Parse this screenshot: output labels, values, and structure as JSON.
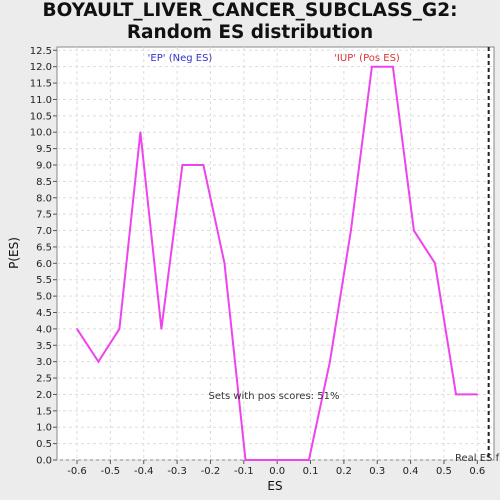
{
  "chart_data": {
    "type": "line",
    "title": "BOYAULT_LIVER_CANCER_SUBCLASS_G2: Random ES distribution",
    "xlabel": "ES",
    "ylabel": "P(ES)",
    "xlim": [
      -0.66,
      0.65
    ],
    "ylim": [
      0,
      12.6
    ],
    "x_ticks": [
      "-0.6",
      "-0.5",
      "-0.4",
      "-0.3",
      "-0.2",
      "-0.1",
      "0.0",
      "0.1",
      "0.2",
      "0.3",
      "0.4",
      "0.5",
      "0.6"
    ],
    "y_ticks": [
      "0.0",
      "0.5",
      "1.0",
      "1.5",
      "2.0",
      "2.5",
      "3.0",
      "3.5",
      "4.0",
      "4.5",
      "5.0",
      "5.5",
      "6.0",
      "6.5",
      "7.0",
      "7.5",
      "8.0",
      "8.5",
      "9.0",
      "9.5",
      "10.0",
      "10.5",
      "11.0",
      "11.5",
      "12.0",
      "12.5"
    ],
    "grid": true,
    "series": [
      {
        "color": "#ee44ee",
        "x": [
          -0.6,
          -0.536,
          -0.473,
          -0.41,
          -0.347,
          -0.284,
          -0.221,
          -0.158,
          -0.095,
          0.032,
          0.095,
          0.158,
          0.221,
          0.284,
          0.347,
          0.41,
          0.473,
          0.536,
          0.6
        ],
        "y": [
          4.0,
          3.0,
          4.0,
          10.0,
          4.0,
          9.0,
          9.0,
          6.0,
          0.0,
          0.0,
          0.0,
          3.0,
          7.0,
          12.0,
          12.0,
          7.0,
          6.0,
          2.0,
          2.0
        ]
      }
    ],
    "annotations": {
      "neg_label": "'EP' (Neg ES)",
      "neg_color": "#3333cc",
      "pos_label": "'IUP' (Pos ES)",
      "pos_color": "#dd3333",
      "pos_scores_text": "Sets with pos scores: 51%",
      "real_es_text": "Real ES f",
      "real_es_x": 0.634
    }
  }
}
